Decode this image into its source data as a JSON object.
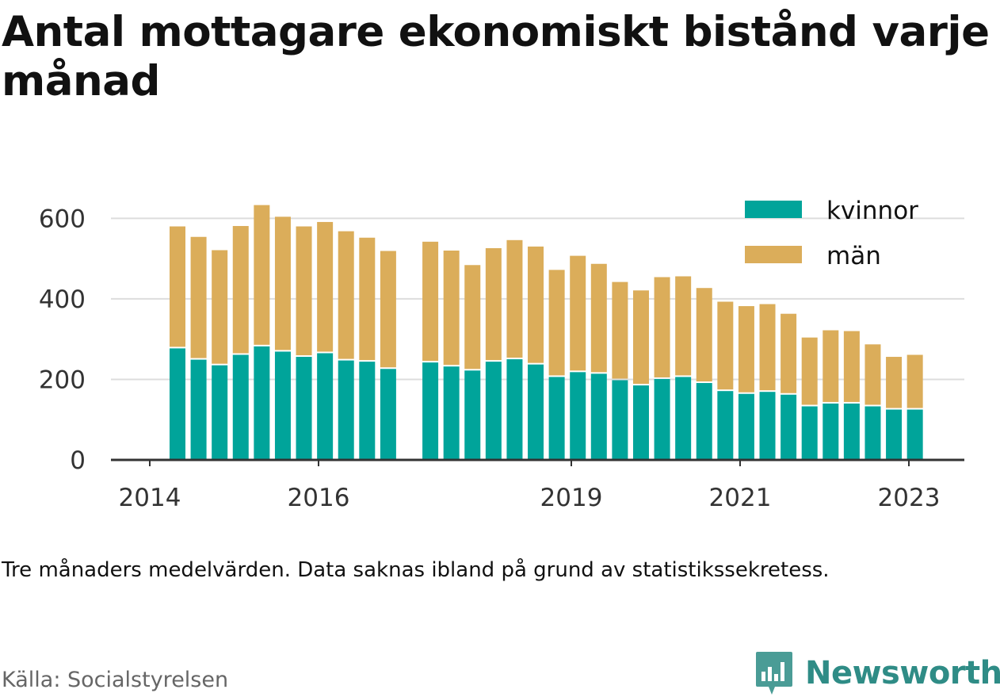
{
  "chart_data": {
    "type": "bar",
    "stacked": true,
    "title": "Antal mottagare ekonomiskt bistånd varje månad",
    "note": "Tre månaders medelvärden. Data saknas ibland på grund av statistikssekretess.",
    "source": "Källa: Socialstyrelsen",
    "brand": "Newsworthy",
    "ylim": [
      0,
      640
    ],
    "yticks": [
      0,
      200,
      400,
      600
    ],
    "xticks": [
      "2014",
      "2016",
      "2019",
      "2021",
      "2023"
    ],
    "legend_position": "top-right",
    "grid": true,
    "colors": {
      "kvinnor": "#00a49a",
      "man": "#dbad5a"
    },
    "series": [
      {
        "name": "kvinnor",
        "values": [
          277,
          249,
          235,
          261,
          282,
          269,
          256,
          265,
          247,
          244,
          226,
          null,
          242,
          232,
          222,
          244,
          250,
          237,
          206,
          218,
          214,
          198,
          185,
          201,
          206,
          191,
          171,
          164,
          169,
          162,
          133,
          140,
          140,
          133,
          125,
          125
        ]
      },
      {
        "name": "män",
        "values": [
          303,
          305,
          286,
          320,
          351,
          335,
          324,
          326,
          321,
          308,
          293,
          null,
          300,
          288,
          262,
          282,
          296,
          293,
          266,
          289,
          273,
          244,
          236,
          253,
          250,
          236,
          222,
          218,
          218,
          201,
          171,
          182,
          180,
          154,
          131,
          136
        ]
      }
    ]
  }
}
